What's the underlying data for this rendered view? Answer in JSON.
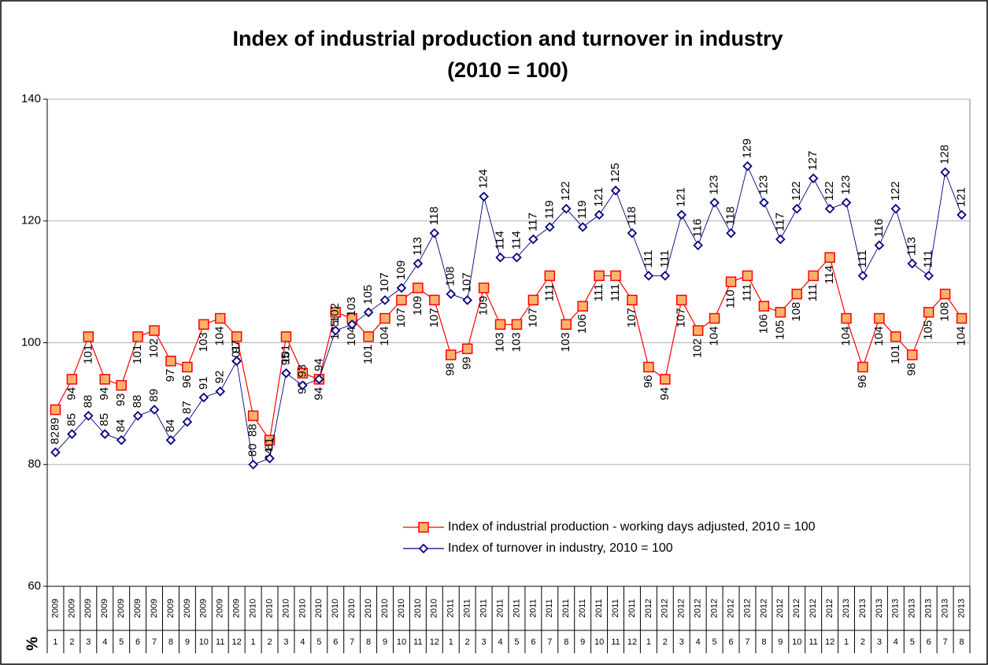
{
  "chart_data": {
    "type": "line",
    "title": "Index of industrial production and turnover in industry",
    "subtitle": "(2010 = 100)",
    "y_label": "%",
    "categories": [
      [
        "2009",
        "1"
      ],
      [
        "2009",
        "2"
      ],
      [
        "2009",
        "3"
      ],
      [
        "2009",
        "4"
      ],
      [
        "2009",
        "5"
      ],
      [
        "2009",
        "6"
      ],
      [
        "2009",
        "7"
      ],
      [
        "2009",
        "8"
      ],
      [
        "2009",
        "9"
      ],
      [
        "2009",
        "10"
      ],
      [
        "2009",
        "11"
      ],
      [
        "2009",
        "12"
      ],
      [
        "2010",
        "1"
      ],
      [
        "2010",
        "2"
      ],
      [
        "2010",
        "3"
      ],
      [
        "2010",
        "4"
      ],
      [
        "2010",
        "5"
      ],
      [
        "2010",
        "6"
      ],
      [
        "2010",
        "7"
      ],
      [
        "2010",
        "8"
      ],
      [
        "2010",
        "9"
      ],
      [
        "2010",
        "10"
      ],
      [
        "2010",
        "11"
      ],
      [
        "2010",
        "12"
      ],
      [
        "2011",
        "1"
      ],
      [
        "2011",
        "2"
      ],
      [
        "2011",
        "3"
      ],
      [
        "2011",
        "4"
      ],
      [
        "2011",
        "5"
      ],
      [
        "2011",
        "6"
      ],
      [
        "2011",
        "7"
      ],
      [
        "2011",
        "8"
      ],
      [
        "2011",
        "9"
      ],
      [
        "2011",
        "10"
      ],
      [
        "2011",
        "11"
      ],
      [
        "2011",
        "12"
      ],
      [
        "2012",
        "1"
      ],
      [
        "2012",
        "2"
      ],
      [
        "2012",
        "3"
      ],
      [
        "2012",
        "4"
      ],
      [
        "2012",
        "5"
      ],
      [
        "2012",
        "6"
      ],
      [
        "2012",
        "7"
      ],
      [
        "2012",
        "8"
      ],
      [
        "2012",
        "9"
      ],
      [
        "2012",
        "10"
      ],
      [
        "2012",
        "11"
      ],
      [
        "2012",
        "12"
      ],
      [
        "2013",
        "1"
      ],
      [
        "2013",
        "2"
      ],
      [
        "2013",
        "3"
      ],
      [
        "2013",
        "4"
      ],
      [
        "2013",
        "5"
      ],
      [
        "2013",
        "6"
      ],
      [
        "2013",
        "7"
      ],
      [
        "2013",
        "8"
      ]
    ],
    "series": [
      {
        "name": "Index of industrial production - working days adjusted, 2010 = 100",
        "color": "#ff0000",
        "marker": "square",
        "fill": "#fbb36a",
        "values": [
          89,
          94,
          101,
          94,
          93,
          101,
          102,
          97,
          96,
          103,
          104,
          101,
          88,
          84,
          101,
          95,
          94,
          105,
          104,
          101,
          104,
          107,
          109,
          107,
          98,
          99,
          109,
          103,
          103,
          107,
          111,
          103,
          106,
          111,
          111,
          107,
          96,
          94,
          107,
          102,
          104,
          110,
          111,
          106,
          105,
          108,
          111,
          114,
          104,
          96,
          104,
          101,
          98,
          105,
          108,
          104
        ]
      },
      {
        "name": "Index of turnover in industry, 2010 = 100",
        "color": "#000080",
        "marker": "diamond",
        "fill": "#ffffff",
        "values": [
          82,
          85,
          88,
          85,
          84,
          88,
          89,
          84,
          87,
          91,
          92,
          97,
          80,
          81,
          95,
          93,
          94,
          102,
          103,
          105,
          107,
          109,
          113,
          118,
          108,
          107,
          124,
          114,
          114,
          117,
          119,
          122,
          119,
          121,
          125,
          118,
          111,
          111,
          121,
          116,
          123,
          118,
          129,
          123,
          117,
          122,
          127,
          122,
          123,
          111,
          116,
          122,
          113,
          111,
          128,
          121
        ]
      }
    ],
    "ylim": [
      60,
      140
    ],
    "yticks": [
      60,
      80,
      100,
      120,
      140
    ],
    "grid": true,
    "legend": "lower-right"
  }
}
